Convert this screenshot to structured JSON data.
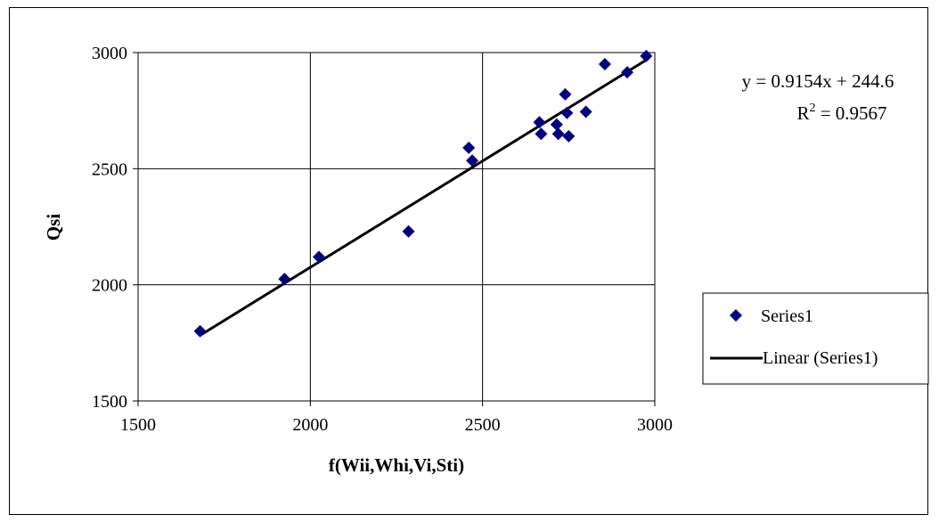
{
  "chart_data": {
    "type": "scatter",
    "xlabel": "f(Wii,Whi,Vi,Sti)",
    "ylabel": "Qsi",
    "xlim": [
      1500,
      3000
    ],
    "ylim": [
      1500,
      3000
    ],
    "x_ticks": [
      1500,
      2000,
      2500,
      3000
    ],
    "y_ticks": [
      1500,
      2000,
      2500,
      3000
    ],
    "grid": true,
    "legend_position": "right",
    "series": [
      {
        "name": "Series1",
        "marker": "diamond",
        "color": "#00007f",
        "points": [
          [
            1680,
            1800
          ],
          [
            1925,
            2025
          ],
          [
            2025,
            2120
          ],
          [
            2285,
            2230
          ],
          [
            2460,
            2590
          ],
          [
            2470,
            2535
          ],
          [
            2665,
            2700
          ],
          [
            2670,
            2650
          ],
          [
            2715,
            2690
          ],
          [
            2720,
            2650
          ],
          [
            2740,
            2820
          ],
          [
            2745,
            2740
          ],
          [
            2750,
            2640
          ],
          [
            2800,
            2745
          ],
          [
            2855,
            2950
          ],
          [
            2920,
            2915
          ],
          [
            2975,
            2985
          ]
        ]
      },
      {
        "name": "Linear (Series1)",
        "type": "trendline",
        "color": "#000000",
        "slope": 0.9154,
        "intercept": 244.6,
        "x_range": [
          1680,
          2975
        ]
      }
    ],
    "annotations": {
      "equation": "y = 0.9154x + 244.6",
      "r2_prefix": "R",
      "r2_exponent": "2",
      "r2_value": " = 0.9567"
    }
  }
}
